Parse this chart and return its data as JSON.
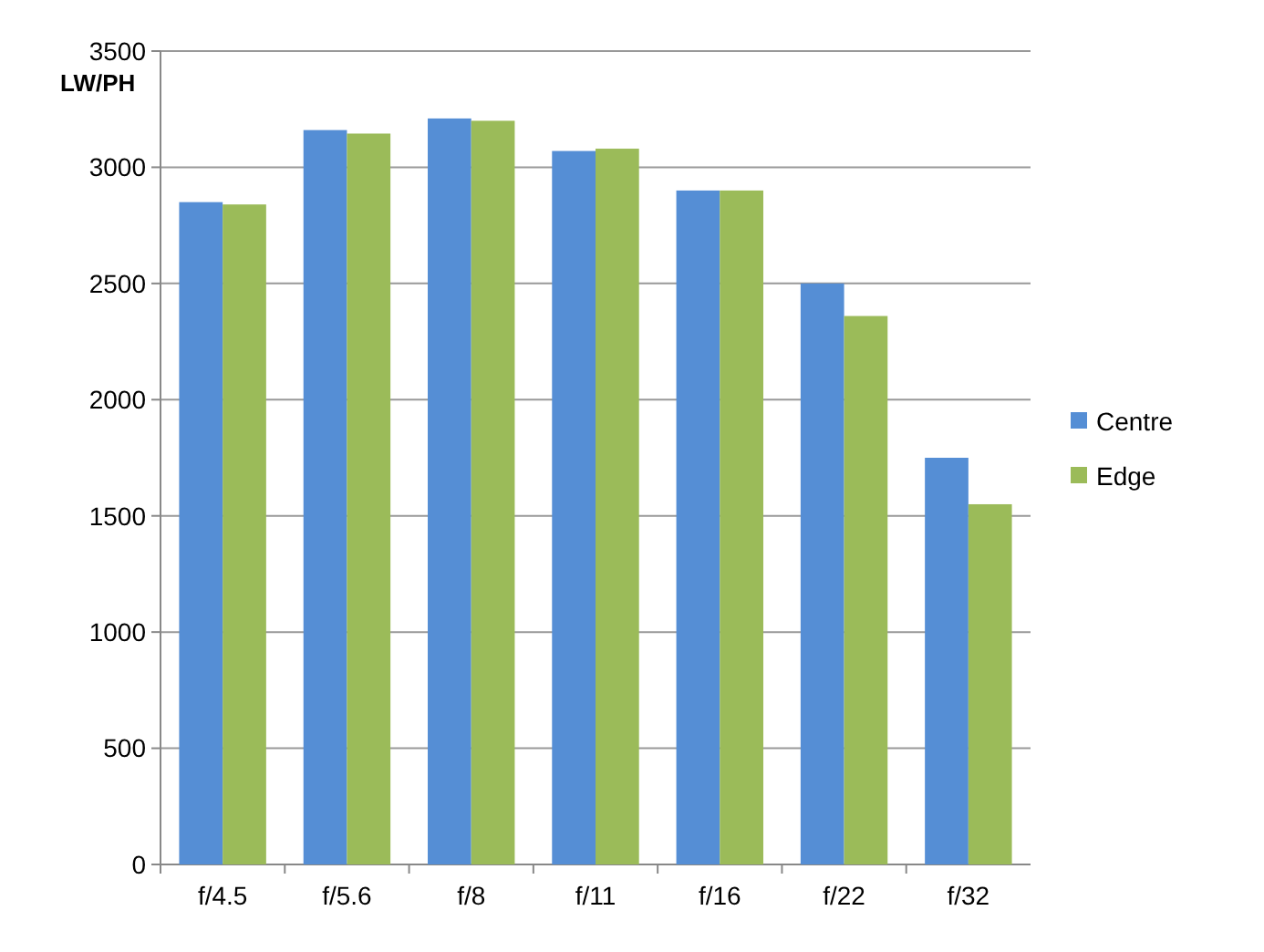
{
  "chart_data": {
    "type": "bar",
    "ylabel": "LW/PH",
    "categories": [
      "f/4.5",
      "f/5.6",
      "f/8",
      "f/11",
      "f/16",
      "f/22",
      "f/32"
    ],
    "series": [
      {
        "name": "Centre",
        "color": "#558ed5",
        "values": [
          2850,
          3160,
          3210,
          3070,
          2900,
          2500,
          1750
        ]
      },
      {
        "name": "Edge",
        "color": "#9bbb59",
        "values": [
          2840,
          3145,
          3200,
          3080,
          2900,
          2360,
          1550
        ]
      }
    ],
    "ylim": [
      0,
      3500
    ],
    "yticks": [
      0,
      500,
      1000,
      1500,
      2000,
      2500,
      3000,
      3500
    ],
    "grid": "y",
    "legend": "right"
  }
}
